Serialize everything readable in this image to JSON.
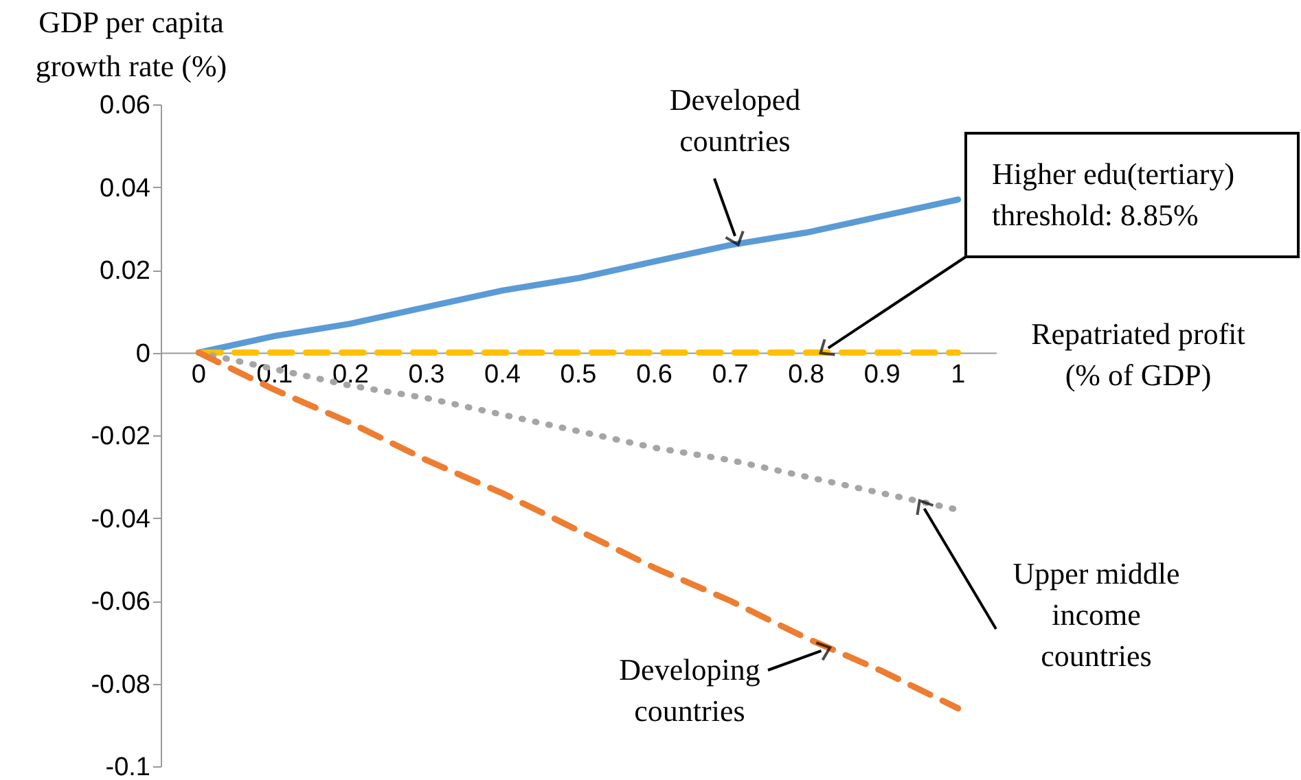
{
  "chart_data": {
    "type": "line",
    "xlabel": "Repatriated profit (% of GDP)",
    "ylabel": "GDP per capita growth rate (%)",
    "categories": [
      "0",
      "0.1",
      "0.2",
      "0.3",
      "0.4",
      "0.5",
      "0.6",
      "0.7",
      "0.8",
      "0.9",
      "1"
    ],
    "ylim": [
      -0.1,
      0.06
    ],
    "yticks": [
      -0.1,
      -0.08,
      -0.06,
      -0.04,
      -0.02,
      0,
      0.02,
      0.04,
      0.06
    ],
    "grid": false,
    "legend": false,
    "marker": "none",
    "series": [
      {
        "name": "Developed countries",
        "color": "#5b9bd5",
        "line_style": "solid",
        "values": [
          0,
          0.004,
          0.007,
          0.011,
          0.015,
          0.018,
          0.022,
          0.026,
          0.029,
          0.033,
          0.037
        ]
      },
      {
        "name": "Higher edu(tertiary) threshold: 8.85%",
        "color": "#ffc000",
        "line_style": "dashed",
        "values": [
          0,
          0,
          0,
          0,
          0,
          0,
          0,
          0,
          0,
          0,
          0
        ]
      },
      {
        "name": "Upper middle income countries",
        "color": "#a5a5a5",
        "line_style": "dotted",
        "values": [
          0,
          -0.004,
          -0.008,
          -0.011,
          -0.015,
          -0.019,
          -0.023,
          -0.026,
          -0.03,
          -0.034,
          -0.038
        ]
      },
      {
        "name": "Developing countries",
        "color": "#ed7d31",
        "line_style": "dashed",
        "values": [
          0,
          -0.009,
          -0.017,
          -0.026,
          -0.034,
          -0.043,
          -0.052,
          -0.06,
          -0.069,
          -0.077,
          -0.086
        ]
      }
    ]
  }
}
